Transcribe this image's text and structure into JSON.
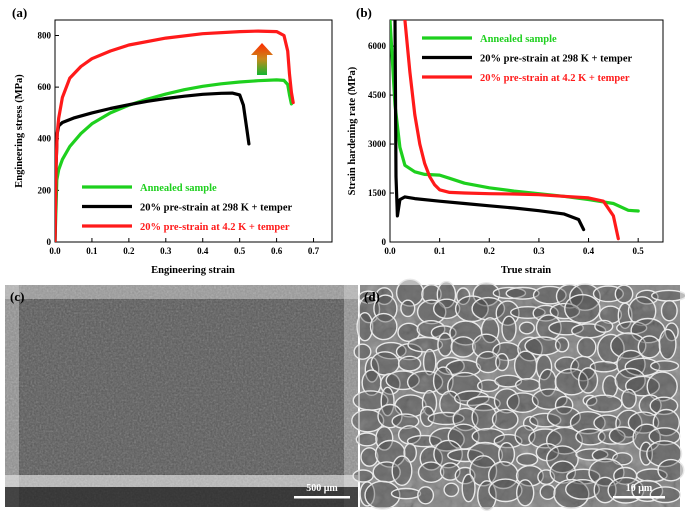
{
  "panels": {
    "a": "(a)",
    "b": "(b)",
    "c": "(c)",
    "d": "(d)"
  },
  "scale_bars": {
    "c": "500 μm",
    "d": "10 μm"
  },
  "colors": {
    "annealed": "#1ed01e",
    "pre298": "#000000",
    "pre42": "#ff1a1a"
  },
  "chart_data": [
    {
      "type": "line",
      "title": "",
      "xlabel": "Engineering strain",
      "ylabel": "Engineering stress (MPa)",
      "xlim": [
        0,
        0.75
      ],
      "ylim": [
        0,
        860
      ],
      "xticks": [
        0.0,
        0.1,
        0.2,
        0.3,
        0.4,
        0.5,
        0.6,
        0.7
      ],
      "yticks": [
        0,
        200,
        400,
        600,
        800
      ],
      "legend_position": "bottom-right",
      "annotation": "up-arrow (red-to-green gradient) near x=0.6",
      "series": [
        {
          "name": "Annealed sample",
          "color": "#1ed01e",
          "x": [
            0.0,
            0.005,
            0.01,
            0.02,
            0.04,
            0.07,
            0.1,
            0.15,
            0.2,
            0.25,
            0.3,
            0.35,
            0.4,
            0.45,
            0.5,
            0.55,
            0.6,
            0.62,
            0.63,
            0.635,
            0.64
          ],
          "y": [
            0,
            240,
            280,
            320,
            370,
            420,
            458,
            500,
            530,
            553,
            573,
            590,
            603,
            613,
            620,
            625,
            628,
            626,
            610,
            570,
            535
          ]
        },
        {
          "name": "20% pre-strain at 298 K + temper",
          "color": "#000000",
          "x": [
            0.0,
            0.003,
            0.006,
            0.01,
            0.02,
            0.05,
            0.1,
            0.15,
            0.2,
            0.25,
            0.3,
            0.35,
            0.4,
            0.45,
            0.48,
            0.5,
            0.51,
            0.52,
            0.525
          ],
          "y": [
            0,
            300,
            420,
            450,
            463,
            480,
            500,
            517,
            532,
            545,
            556,
            565,
            572,
            576,
            577,
            570,
            530,
            430,
            380
          ]
        },
        {
          "name": "20% pre-strain at 4.2 K + temper",
          "color": "#ff1a1a",
          "x": [
            0.0,
            0.003,
            0.006,
            0.01,
            0.02,
            0.04,
            0.07,
            0.1,
            0.15,
            0.2,
            0.3,
            0.4,
            0.5,
            0.55,
            0.6,
            0.62,
            0.63,
            0.635,
            0.64,
            0.645
          ],
          "y": [
            0,
            300,
            420,
            480,
            560,
            635,
            680,
            710,
            740,
            763,
            790,
            807,
            815,
            817,
            815,
            800,
            740,
            650,
            580,
            540
          ]
        }
      ]
    },
    {
      "type": "line",
      "title": "",
      "xlabel": "True strain",
      "ylabel": "Strain hardening rate (MPa)",
      "xlim": [
        0,
        0.55
      ],
      "ylim": [
        0,
        6800
      ],
      "xticks": [
        0.0,
        0.1,
        0.2,
        0.3,
        0.4,
        0.5
      ],
      "yticks": [
        0,
        1500,
        3000,
        4500,
        6000
      ],
      "legend_position": "top-right",
      "series": [
        {
          "name": "Annealed sample",
          "color": "#1ed01e",
          "x": [
            0.0,
            0.01,
            0.02,
            0.03,
            0.05,
            0.07,
            0.1,
            0.12,
            0.15,
            0.2,
            0.25,
            0.3,
            0.35,
            0.4,
            0.45,
            0.48,
            0.5
          ],
          "y": [
            6800,
            4200,
            2900,
            2350,
            2150,
            2070,
            2050,
            1950,
            1800,
            1660,
            1560,
            1480,
            1400,
            1300,
            1180,
            970,
            950
          ]
        },
        {
          "name": "20% pre-strain at 298 K + temper",
          "color": "#000000",
          "x": [
            0.01,
            0.012,
            0.015,
            0.02,
            0.03,
            0.05,
            0.1,
            0.15,
            0.2,
            0.25,
            0.3,
            0.35,
            0.38,
            0.39
          ],
          "y": [
            6800,
            2000,
            800,
            1300,
            1380,
            1330,
            1250,
            1180,
            1110,
            1040,
            960,
            860,
            690,
            380
          ]
        },
        {
          "name": "20% pre-strain at 4.2 K + temper",
          "color": "#ff1a1a",
          "x": [
            0.03,
            0.04,
            0.05,
            0.06,
            0.07,
            0.08,
            0.09,
            0.1,
            0.12,
            0.15,
            0.2,
            0.25,
            0.3,
            0.35,
            0.4,
            0.43,
            0.45,
            0.46
          ],
          "y": [
            6800,
            5200,
            3900,
            3000,
            2400,
            2000,
            1750,
            1600,
            1520,
            1500,
            1480,
            1470,
            1450,
            1400,
            1350,
            1250,
            800,
            100
          ]
        }
      ]
    }
  ]
}
